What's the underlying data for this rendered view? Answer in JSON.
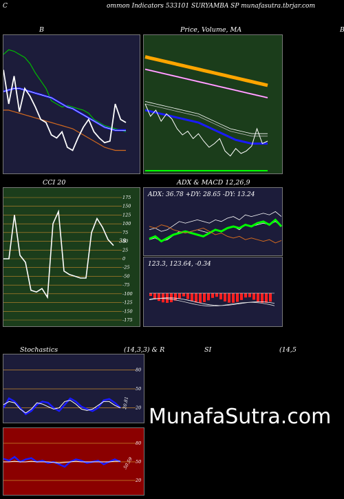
{
  "header": {
    "left_letter": "C",
    "title": "ommon  Indicators 533101 SURYAMBA SP munafasutra.tbrjar.com"
  },
  "panels": {
    "bb_title": "B",
    "price_title": "Price,  Volume,  MA",
    "right_edge_letter": "B",
    "cci_title": "CCI 20",
    "adx_title": "ADX  & MACD 12,26,9",
    "adx_info": "ADX: 36.78  +DY: 28.65 -DY: 13.24",
    "macd_info": "123.3,    123.64,  -0.34",
    "stoch_title_left": "Stochastics",
    "stoch_title_mid": "(14,3,3) & R",
    "rsi_title_left": "SI",
    "rsi_title_right": "(14,5",
    "watermark": "MunafaSutra.com"
  },
  "colors": {
    "navy": "#1c1c3a",
    "green_bg": "#1b3d1b",
    "red_bg": "#8b0000",
    "orange": "#d2691e",
    "blue": "#1a1aff",
    "bright_green": "#00dd00",
    "magenta": "#ff66ff",
    "thick_orange": "#ffa500"
  },
  "chart_data": [
    {
      "type": "line",
      "title": "B",
      "note": "Bollinger Bands panel",
      "series": [
        {
          "values": [
            72,
            75,
            74,
            72,
            70,
            66,
            60,
            55,
            50,
            42,
            40,
            38,
            39,
            38,
            37,
            36,
            34,
            30,
            28,
            26,
            25,
            24,
            23,
            22
          ]
        },
        {
          "values": [
            48,
            49,
            50,
            50,
            49,
            48,
            47,
            46,
            45,
            44,
            42,
            40,
            38,
            37,
            35,
            33,
            31,
            29,
            27,
            25,
            24,
            23,
            23,
            23
          ]
        },
        {
          "values": [
            36,
            36,
            35,
            34,
            33,
            32,
            31,
            30,
            29,
            28,
            27,
            26,
            25,
            24,
            22,
            20,
            18,
            16,
            14,
            12,
            11,
            10,
            10,
            10
          ]
        },
        {
          "values": [
            62,
            40,
            58,
            35,
            50,
            45,
            38,
            30,
            28,
            20,
            18,
            22,
            12,
            10,
            18,
            25,
            30,
            22,
            18,
            15,
            16,
            40,
            30,
            28
          ]
        }
      ]
    },
    {
      "type": "line",
      "title": "Price,  Volume,  MA",
      "series": [
        {
          "values": [
            88,
            87,
            86,
            85,
            84,
            83,
            82,
            81,
            80,
            79,
            78,
            77,
            76,
            75,
            74,
            73,
            72,
            71,
            70,
            69,
            68,
            67,
            66,
            65
          ]
        },
        {
          "values": [
            78,
            77,
            76,
            75,
            74,
            73,
            72,
            71,
            70,
            69,
            68,
            67,
            66,
            65,
            64,
            63,
            62,
            61,
            60,
            59,
            58,
            57,
            56,
            55
          ]
        },
        {
          "values": [
            52,
            51,
            50,
            49,
            48,
            47,
            46,
            45,
            44,
            43,
            42,
            40,
            38,
            36,
            34,
            32,
            30,
            29,
            28,
            27,
            26,
            26,
            26,
            26
          ]
        },
        {
          "values": [
            45,
            44,
            43,
            42,
            41,
            40,
            39,
            38,
            37,
            36,
            35,
            33,
            31,
            29,
            27,
            25,
            23,
            21,
            20,
            19,
            18,
            18,
            18,
            18
          ]
        },
        {
          "values": [
            50,
            40,
            45,
            36,
            42,
            38,
            30,
            25,
            28,
            22,
            26,
            20,
            15,
            18,
            22,
            12,
            8,
            14,
            10,
            12,
            16,
            30,
            18,
            20
          ]
        }
      ]
    },
    {
      "type": "line",
      "title": "CCI 20",
      "ylim": [
        -175,
        175
      ],
      "ticks": [
        175,
        150,
        125,
        100,
        75,
        50,
        25,
        0,
        -25,
        -50,
        -75,
        -100,
        -125,
        -150,
        -175
      ],
      "last_value_label": "38",
      "series": [
        {
          "values": [
            0,
            0,
            125,
            10,
            -10,
            -90,
            -95,
            -85,
            -110,
            100,
            135,
            -35,
            -45,
            -50,
            -55,
            -55,
            75,
            115,
            90,
            55,
            38
          ]
        }
      ]
    },
    {
      "type": "line",
      "title": "ADX  & MACD 12,26,9",
      "adx": {
        "adx": 36.78,
        "plus_di": 28.65,
        "minus_di": 13.24
      },
      "macd": {
        "macd": 123.3,
        "signal": 123.64,
        "histogram": -0.34
      },
      "series": [
        {
          "values": [
            20,
            22,
            18,
            20,
            25,
            30,
            28,
            30,
            32,
            30,
            28,
            32,
            30,
            34,
            36,
            32,
            38,
            36,
            38,
            40,
            38,
            42,
            36
          ]
        },
        {
          "values": [
            15,
            18,
            12,
            16,
            20,
            22,
            24,
            22,
            20,
            18,
            22,
            26,
            24,
            28,
            30,
            28,
            32,
            30,
            34,
            36,
            32,
            38,
            30
          ]
        },
        {
          "values": [
            30,
            28,
            32,
            30,
            26,
            24,
            22,
            24,
            26,
            28,
            24,
            20,
            22,
            18,
            16,
            18,
            14,
            16,
            14,
            12,
            14,
            10,
            13
          ]
        }
      ]
    },
    {
      "type": "line",
      "title": "Stochastics (14,3,3) & R",
      "ylim": [
        0,
        100
      ],
      "ticks": [
        80,
        50,
        20
      ],
      "last_value_label": "20.81",
      "series": [
        {
          "values": [
            20,
            35,
            30,
            20,
            10,
            15,
            25,
            30,
            28,
            20,
            15,
            25,
            35,
            30,
            22,
            18,
            15,
            20,
            32,
            34,
            28,
            20
          ]
        },
        {
          "values": [
            25,
            30,
            28,
            18,
            12,
            18,
            28,
            26,
            22,
            18,
            20,
            30,
            32,
            26,
            18,
            16,
            18,
            24,
            30,
            30,
            24,
            20
          ]
        }
      ]
    },
    {
      "type": "line",
      "title": "SI (14,5",
      "ylim": [
        0,
        100
      ],
      "ticks": [
        80,
        50,
        20
      ],
      "last_value_label": "50.59",
      "series": [
        {
          "values": [
            55,
            52,
            58,
            50,
            54,
            56,
            50,
            52,
            48,
            50,
            46,
            42,
            50,
            54,
            52,
            48,
            50,
            52,
            46,
            50,
            54,
            50
          ]
        },
        {
          "values": [
            50,
            50,
            51,
            50,
            50,
            51,
            50,
            50,
            50,
            49,
            48,
            49,
            50,
            51,
            50,
            50,
            50,
            50,
            50,
            50,
            51,
            51
          ]
        }
      ]
    }
  ]
}
